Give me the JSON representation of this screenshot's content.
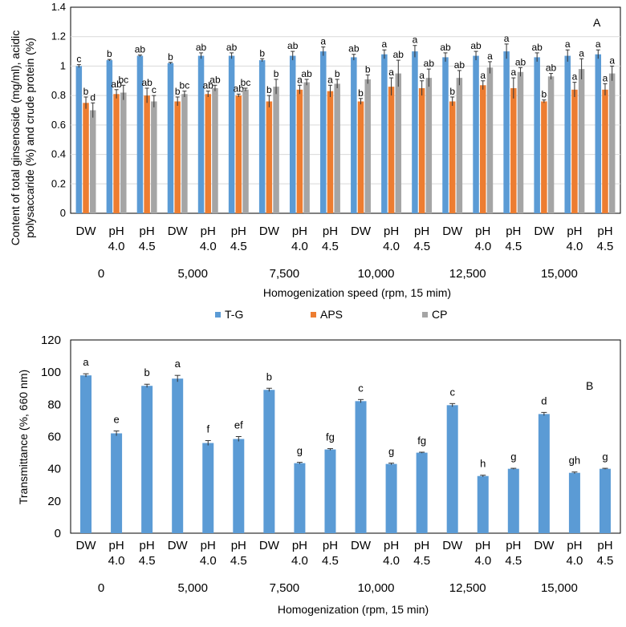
{
  "chart_data": [
    {
      "type": "bar",
      "panel_label": "A",
      "ylabel_lines": [
        "Content of total ginsenoside (mg/ml), acidic",
        "polysaccaride (%) and crude protein (%)"
      ],
      "xlabel": "Homogenization speed (rpm, 15 mim)",
      "ylim": [
        0,
        1.4
      ],
      "yticks": [
        "0",
        "0.2",
        "0.4",
        "0.6",
        "0.8",
        "1",
        "1.2",
        "1.4"
      ],
      "categories": [
        [
          "DW"
        ],
        [
          "pH",
          "4.0"
        ],
        [
          "pH",
          "4.5"
        ],
        [
          "DW"
        ],
        [
          "pH",
          "4.0"
        ],
        [
          "pH",
          "4.5"
        ],
        [
          "DW"
        ],
        [
          "pH",
          "4.0"
        ],
        [
          "pH",
          "4.5"
        ],
        [
          "DW"
        ],
        [
          "pH",
          "4.0"
        ],
        [
          "pH",
          "4.5"
        ],
        [
          "DW"
        ],
        [
          "pH",
          "4.0"
        ],
        [
          "pH",
          "4.5"
        ],
        [
          "DW"
        ],
        [
          "pH",
          "4.0"
        ],
        [
          "pH",
          "4.5"
        ]
      ],
      "groups": [
        "0",
        "5,000",
        "7,500",
        "10,000",
        "12,500",
        "15,000"
      ],
      "series": [
        {
          "name": "T-G",
          "color": "#5b9bd5",
          "values": [
            1.0,
            1.04,
            1.07,
            1.02,
            1.07,
            1.07,
            1.04,
            1.07,
            1.1,
            1.06,
            1.08,
            1.1,
            1.06,
            1.07,
            1.1,
            1.06,
            1.07,
            1.08
          ],
          "errors": [
            0.01,
            0.005,
            0.005,
            0.005,
            0.02,
            0.02,
            0.01,
            0.03,
            0.03,
            0.02,
            0.03,
            0.04,
            0.03,
            0.03,
            0.05,
            0.03,
            0.04,
            0.03
          ],
          "letters": [
            "c",
            "b",
            "ab",
            "b",
            "ab",
            "ab",
            "b",
            "ab",
            "a",
            "ab",
            "a",
            "a",
            "ab",
            "ab",
            "a",
            "ab",
            "a",
            "a"
          ]
        },
        {
          "name": "APS",
          "color": "#ed7d31",
          "values": [
            0.75,
            0.81,
            0.8,
            0.76,
            0.81,
            0.8,
            0.76,
            0.84,
            0.83,
            0.76,
            0.86,
            0.85,
            0.76,
            0.87,
            0.85,
            0.76,
            0.84,
            0.84
          ],
          "errors": [
            0.04,
            0.03,
            0.05,
            0.03,
            0.02,
            0.01,
            0.04,
            0.03,
            0.04,
            0.02,
            0.06,
            0.05,
            0.03,
            0.03,
            0.07,
            0.01,
            0.05,
            0.04
          ],
          "letters": [
            "b",
            "ab",
            "ab",
            "b",
            "ab",
            "ab",
            "b",
            "a",
            "a",
            "b",
            "a",
            "a",
            "b",
            "a",
            "a",
            "b",
            "a",
            "a"
          ]
        },
        {
          "name": "CP",
          "color": "#a5a5a5",
          "values": [
            0.7,
            0.82,
            0.76,
            0.81,
            0.85,
            0.84,
            0.86,
            0.89,
            0.88,
            0.91,
            0.95,
            0.92,
            0.92,
            0.99,
            0.96,
            0.93,
            0.98,
            0.95
          ],
          "errors": [
            0.05,
            0.05,
            0.04,
            0.02,
            0.02,
            0.01,
            0.05,
            0.02,
            0.03,
            0.03,
            0.09,
            0.06,
            0.05,
            0.04,
            0.03,
            0.02,
            0.07,
            0.05
          ],
          "letters": [
            "d",
            "bc",
            "c",
            "bc",
            "ab",
            "bc",
            "b",
            "ab",
            "b",
            "b",
            "ab",
            "ab",
            "ab",
            "a",
            "ab",
            "ab",
            "a",
            "a"
          ]
        }
      ],
      "legend": [
        "T-G",
        "APS",
        "CP"
      ]
    },
    {
      "type": "bar",
      "panel_label": "B",
      "ylabel": "Transmittance (%, 660 nm)",
      "xlabel": "Homogenization (rpm, 15 min)",
      "ylim": [
        0,
        120
      ],
      "yticks": [
        "0",
        "20",
        "40",
        "60",
        "80",
        "100",
        "120"
      ],
      "categories": [
        [
          "DW"
        ],
        [
          "pH",
          "4.0"
        ],
        [
          "pH",
          "4.5"
        ],
        [
          "DW"
        ],
        [
          "pH",
          "4.0"
        ],
        [
          "pH",
          "4.5"
        ],
        [
          "DW"
        ],
        [
          "pH",
          "4.0"
        ],
        [
          "pH",
          "4.5"
        ],
        [
          "DW"
        ],
        [
          "pH",
          "4.0"
        ],
        [
          "pH",
          "4.5"
        ],
        [
          "DW"
        ],
        [
          "pH",
          "4.0"
        ],
        [
          "pH",
          "4.5"
        ],
        [
          "DW"
        ],
        [
          "pH",
          "4.0"
        ],
        [
          "pH",
          "4.5"
        ]
      ],
      "groups": [
        "0",
        "5,000",
        "7,500",
        "10,000",
        "12,500",
        "15,000"
      ],
      "series": [
        {
          "name": "Transmittance",
          "color": "#5b9bd5",
          "values": [
            98,
            62,
            91.5,
            96,
            56,
            58.5,
            89,
            43.5,
            52,
            82,
            43,
            50,
            79.5,
            35.5,
            40,
            74,
            37.5,
            40
          ],
          "errors": [
            1,
            1.5,
            1,
            2,
            1.5,
            1.5,
            1,
            0.5,
            0.5,
            1,
            0.5,
            0.3,
            1,
            0.5,
            0.3,
            1,
            0.5,
            0.3
          ],
          "letters": [
            "a",
            "e",
            "b",
            "a",
            "f",
            "ef",
            "b",
            "g",
            "fg",
            "c",
            "g",
            "fg",
            "c",
            "h",
            "g",
            "d",
            "gh",
            "g"
          ]
        }
      ]
    }
  ]
}
